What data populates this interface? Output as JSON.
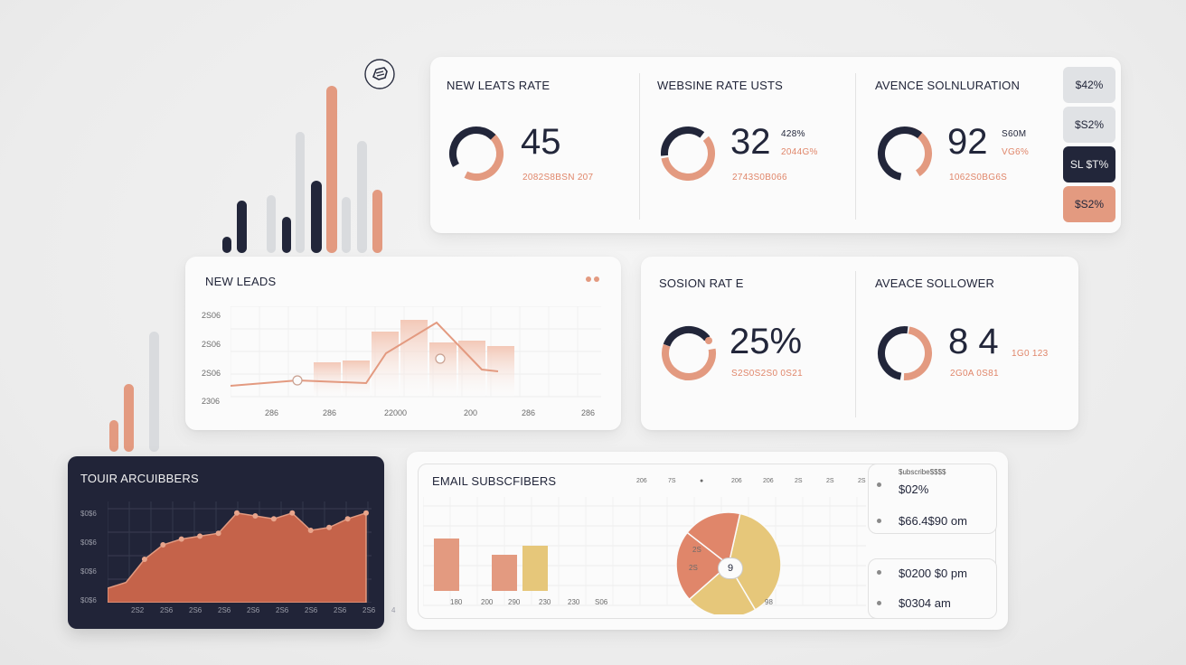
{
  "colors": {
    "navy": "#22263a",
    "salmon": "#e39a80",
    "coral": "#e0866a",
    "light_gray": "#d9dbde",
    "dark_panel": "#212438",
    "gold": "#e6c77a"
  },
  "top_icon": "hand-icon",
  "top_card": {
    "sections": [
      {
        "title": "NEW LEATS RATE",
        "value": "45",
        "sub": "2082S8BSN 207",
        "side1": "",
        "side2": ""
      },
      {
        "title": "WEBSINE RATE USTS",
        "value": "32",
        "sub": "2743S0B066",
        "side1": "428%",
        "side2": "2044G%"
      },
      {
        "title": "AVENCE SOLNLURATION",
        "value": "92",
        "sub": "1062S0BG6S",
        "side1": "S60M",
        "side2": "VG6%"
      }
    ],
    "pills": [
      "$42%",
      "$S2%",
      "SL $T%",
      "$S2%"
    ]
  },
  "leads_card": {
    "title": "NEW LEADS",
    "y_ticks": [
      "2S06",
      "2S06",
      "2S06",
      "2306"
    ],
    "x_ticks": [
      "286",
      "286",
      "22000",
      "200",
      "286",
      "286"
    ],
    "line_points": [
      12,
      18,
      15,
      48,
      82,
      30,
      28
    ],
    "bar_values": [
      38,
      40,
      72,
      85,
      60,
      62,
      56
    ]
  },
  "session_card": {
    "sections": [
      {
        "title": "SOSION RAT E",
        "value": "25%",
        "sub": "S2S0S2S0 0S21"
      },
      {
        "title": "AVEACE SOLLOWER",
        "value": "8 4",
        "sub": "2G0A 0S81",
        "side1": "1G0 123"
      }
    ]
  },
  "subscribers_card": {
    "title": "TOUIR ARCUIBBERS",
    "y_ticks": [
      "$0$6",
      "$0$6",
      "$0$6",
      "$0$6"
    ],
    "x_ticks": [
      "2S2",
      "2S6",
      "2S6",
      "2S6",
      "2S6",
      "2S6",
      "2S6",
      "2S6",
      "2S6",
      "4"
    ],
    "area_values": [
      10,
      14,
      30,
      40,
      44,
      46,
      48,
      62,
      60,
      58,
      62,
      50,
      52,
      58,
      62
    ]
  },
  "email_card": {
    "title": "EMAIL SUBSCFIBERS",
    "header_ticks": [
      "206",
      "7S",
      "",
      "206",
      "206",
      "2S",
      "2S",
      "2S",
      "2S"
    ],
    "bars": [
      {
        "label": "180",
        "value": 58,
        "color": "#e39a80"
      },
      {
        "label": "200",
        "value": 0,
        "color": "#e39a80"
      },
      {
        "label": "290",
        "value": 40,
        "color": "#e39a80"
      },
      {
        "label": "230",
        "value": 50,
        "color": "#e6c77a"
      },
      {
        "label": "230",
        "value": 0,
        "color": "#e6c77a"
      },
      {
        "label": "S06",
        "value": 0,
        "color": "#e6c77a"
      }
    ],
    "pie": {
      "slices": [
        {
          "label": "2S",
          "value": 38,
          "color": "#e6c77a"
        },
        {
          "label": "2S",
          "value": 22,
          "color": "#e6c77a"
        },
        {
          "label": "",
          "value": 22,
          "color": "#e0866a"
        },
        {
          "label": "98",
          "value": 18,
          "color": "#e0866a"
        }
      ],
      "center_label": "9"
    },
    "legend_top": {
      "caption": "$ubscribe$$$$",
      "line1": "$02%",
      "line2": "$66.4$90 om"
    },
    "legend_bottom": {
      "line1": "$0200 $0 pm",
      "line2": "$0304 am"
    }
  }
}
